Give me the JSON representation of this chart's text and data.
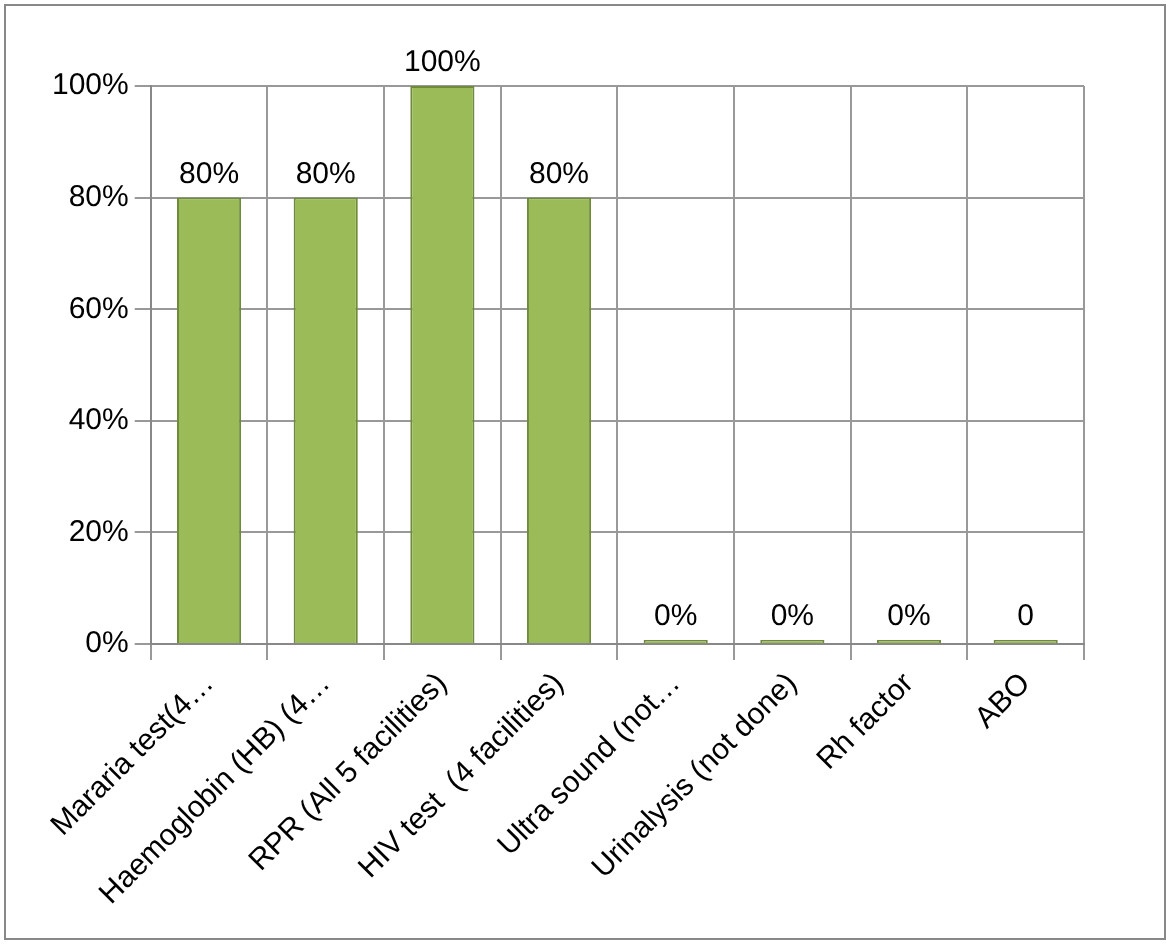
{
  "chart_data": {
    "type": "bar",
    "categories": [
      "Mararia test(4…",
      "Haemoglobin (HB) (4…",
      "RPR (All 5 facilities)",
      "HIV test  (4 facilities)",
      "Ultra sound (not…",
      "Urinalysis (not done)",
      "Rh factor",
      "ABO"
    ],
    "values": [
      80,
      80,
      100,
      80,
      0,
      0,
      0,
      0
    ],
    "value_labels": [
      "80%",
      "80%",
      "100%",
      "80%",
      "0%",
      "0%",
      "0%",
      "0"
    ],
    "color": "#9bbb59",
    "ylim": [
      0,
      100
    ],
    "yticks": [
      {
        "value": 0,
        "label": "0%"
      },
      {
        "value": 20,
        "label": "20%"
      },
      {
        "value": 40,
        "label": "40%"
      },
      {
        "value": 60,
        "label": "60%"
      },
      {
        "value": 80,
        "label": "80%"
      },
      {
        "value": 100,
        "label": "100%"
      }
    ],
    "grid": true,
    "legend": false
  }
}
